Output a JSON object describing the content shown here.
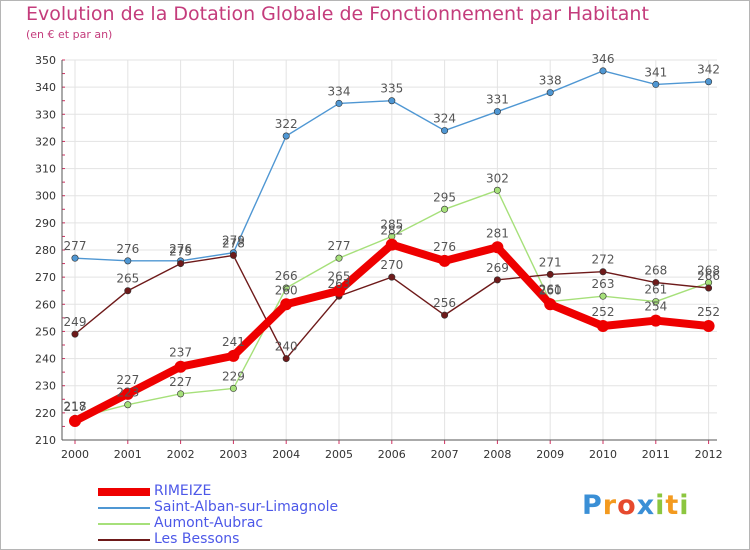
{
  "header": {
    "title": "Evolution de la Dotation Globale de Fonctionnement par Habitant",
    "subtitle": "(en € et par an)"
  },
  "logo": {
    "text": "Proxiti",
    "letters": [
      "P",
      "r",
      "o",
      "x",
      "i",
      "t",
      "i"
    ],
    "letter_colors": [
      "#3a8fd6",
      "#f39a1f",
      "#e64a2e",
      "#3a8fd6",
      "#8cc63f",
      "#f39a1f",
      "#8cc63f"
    ]
  },
  "chart_data": {
    "type": "line",
    "x": [
      "2000",
      "2001",
      "2002",
      "2003",
      "2004",
      "2005",
      "2006",
      "2007",
      "2008",
      "2009",
      "2010",
      "2011",
      "2012"
    ],
    "ylim": [
      210,
      350
    ],
    "yticks": [
      210,
      220,
      230,
      240,
      250,
      260,
      270,
      280,
      290,
      300,
      310,
      320,
      330,
      340,
      350
    ],
    "grid": true,
    "legend_position": "bottom-left",
    "series": [
      {
        "name": "Saint-Alban-sur-Limagnole",
        "color": "#4f97d3",
        "values": [
          277,
          276,
          276,
          279,
          322,
          334,
          335,
          324,
          331,
          338,
          346,
          341,
          342
        ]
      },
      {
        "name": "Aumont-Aubrac",
        "color": "#a6e07a",
        "values": [
          218,
          223,
          227,
          229,
          266,
          277,
          285,
          295,
          302,
          261,
          263,
          261,
          268
        ]
      },
      {
        "name": "Les Bessons",
        "color": "#6e1a1a",
        "values": [
          249,
          265,
          275,
          278,
          240,
          263,
          270,
          256,
          269,
          271,
          272,
          268,
          266
        ]
      },
      {
        "name": "RIMEIZE",
        "color": "#ee0000",
        "values": [
          217,
          227,
          237,
          241,
          260,
          265,
          282,
          276,
          281,
          260,
          252,
          254,
          252
        ]
      }
    ],
    "legend_order": [
      "RIMEIZE",
      "Saint-Alban-sur-Limagnole",
      "Aumont-Aubrac",
      "Les Bessons"
    ]
  }
}
